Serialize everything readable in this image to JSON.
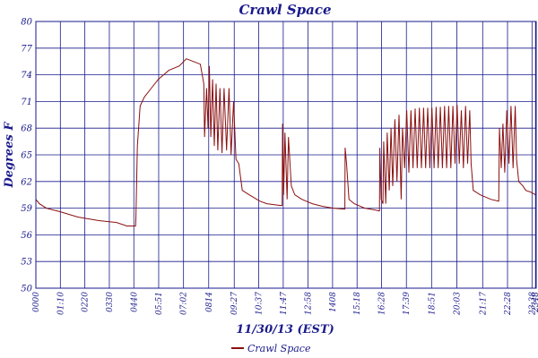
{
  "chart_data": {
    "type": "line",
    "title": "Crawl Space",
    "xlabel": "11/30/13 (EST)",
    "ylabel": "Degrees F",
    "ylim": [
      50,
      80
    ],
    "yticks": [
      50,
      53,
      56,
      59,
      62,
      65,
      68,
      71,
      74,
      77,
      80
    ],
    "ytick_labels": [
      "50",
      "53",
      "56",
      "59",
      "62",
      "65",
      "68",
      "71",
      "74",
      "77",
      "80"
    ],
    "xtick_labels": [
      "0000",
      "01:10",
      "0220",
      "0330",
      "0440",
      "05:51",
      "07:02",
      "0814",
      "09:27",
      "10:37",
      "11:47",
      "12:58",
      "1408",
      "15:18",
      "16:28",
      "17:39",
      "18:51",
      "20:03",
      "21:17",
      "22:28",
      "23:38",
      "2348"
    ],
    "xtick_minutes": [
      0,
      70,
      140,
      210,
      280,
      351,
      422,
      494,
      567,
      637,
      707,
      778,
      848,
      918,
      988,
      1059,
      1131,
      1203,
      1277,
      1348,
      1418,
      1428
    ],
    "xlim": [
      0,
      1430
    ],
    "grid": true,
    "legend_position": "bottom-center",
    "series": [
      {
        "name": "Crawl Space",
        "color": "#8b1010",
        "points": [
          [
            0,
            60.0
          ],
          [
            10,
            59.5
          ],
          [
            30,
            59.0
          ],
          [
            70,
            58.6
          ],
          [
            120,
            58.0
          ],
          [
            180,
            57.6
          ],
          [
            230,
            57.4
          ],
          [
            260,
            57.0
          ],
          [
            285,
            57.0
          ],
          [
            286,
            58.0
          ],
          [
            290,
            66.0
          ],
          [
            298,
            70.5
          ],
          [
            310,
            71.5
          ],
          [
            330,
            72.5
          ],
          [
            350,
            73.5
          ],
          [
            380,
            74.5
          ],
          [
            410,
            75.0
          ],
          [
            430,
            75.8
          ],
          [
            450,
            75.5
          ],
          [
            470,
            75.2
          ],
          [
            480,
            73.0
          ],
          [
            482,
            67.0
          ],
          [
            488,
            72.5
          ],
          [
            492,
            68.0
          ],
          [
            496,
            75.0
          ],
          [
            500,
            67.0
          ],
          [
            505,
            73.5
          ],
          [
            510,
            66.0
          ],
          [
            515,
            73.0
          ],
          [
            520,
            65.5
          ],
          [
            526,
            72.5
          ],
          [
            532,
            65.2
          ],
          [
            538,
            72.5
          ],
          [
            545,
            65.5
          ],
          [
            552,
            72.5
          ],
          [
            558,
            65.0
          ],
          [
            565,
            71.0
          ],
          [
            572,
            64.5
          ],
          [
            580,
            64.0
          ],
          [
            590,
            61.0
          ],
          [
            610,
            60.5
          ],
          [
            640,
            59.8
          ],
          [
            660,
            59.5
          ],
          [
            700,
            59.3
          ],
          [
            704,
            59.3
          ],
          [
            705,
            68.5
          ],
          [
            708,
            60.5
          ],
          [
            712,
            67.5
          ],
          [
            718,
            60.0
          ],
          [
            722,
            67.0
          ],
          [
            730,
            61.5
          ],
          [
            740,
            60.5
          ],
          [
            760,
            60.0
          ],
          [
            790,
            59.5
          ],
          [
            820,
            59.2
          ],
          [
            850,
            59.0
          ],
          [
            880,
            58.9
          ],
          [
            883,
            58.9
          ],
          [
            884,
            65.8
          ],
          [
            888,
            64.0
          ],
          [
            895,
            60.0
          ],
          [
            910,
            59.5
          ],
          [
            940,
            59.0
          ],
          [
            970,
            58.8
          ],
          [
            980,
            58.7
          ],
          [
            982,
            58.7
          ],
          [
            983,
            65.8
          ],
          [
            987,
            60.0
          ],
          [
            992,
            59.5
          ],
          [
            994,
            66.5
          ],
          [
            1000,
            59.5
          ],
          [
            1004,
            67.5
          ],
          [
            1010,
            61.0
          ],
          [
            1015,
            68.0
          ],
          [
            1020,
            61.5
          ],
          [
            1026,
            69.0
          ],
          [
            1032,
            62.0
          ],
          [
            1038,
            69.5
          ],
          [
            1044,
            60.0
          ],
          [
            1048,
            68.0
          ],
          [
            1054,
            63.5
          ],
          [
            1060,
            70.0
          ],
          [
            1066,
            63.0
          ],
          [
            1072,
            70.0
          ],
          [
            1078,
            63.5
          ],
          [
            1084,
            70.2
          ],
          [
            1090,
            63.5
          ],
          [
            1096,
            70.3
          ],
          [
            1102,
            63.5
          ],
          [
            1108,
            70.3
          ],
          [
            1114,
            63.5
          ],
          [
            1120,
            70.3
          ],
          [
            1126,
            63.5
          ],
          [
            1132,
            70.3
          ],
          [
            1138,
            63.5
          ],
          [
            1144,
            70.4
          ],
          [
            1150,
            63.5
          ],
          [
            1156,
            70.4
          ],
          [
            1162,
            63.5
          ],
          [
            1168,
            70.5
          ],
          [
            1174,
            63.5
          ],
          [
            1180,
            70.5
          ],
          [
            1186,
            63.5
          ],
          [
            1192,
            70.5
          ],
          [
            1198,
            64.0
          ],
          [
            1204,
            70.6
          ],
          [
            1210,
            64.0
          ],
          [
            1216,
            70.0
          ],
          [
            1222,
            63.5
          ],
          [
            1228,
            70.5
          ],
          [
            1234,
            64.0
          ],
          [
            1240,
            70.0
          ],
          [
            1244,
            64.0
          ],
          [
            1250,
            61.0
          ],
          [
            1270,
            60.5
          ],
          [
            1300,
            60.0
          ],
          [
            1322,
            59.8
          ],
          [
            1323,
            59.8
          ],
          [
            1325,
            68.0
          ],
          [
            1330,
            63.5
          ],
          [
            1335,
            68.5
          ],
          [
            1340,
            63.0
          ],
          [
            1346,
            70.0
          ],
          [
            1352,
            64.0
          ],
          [
            1358,
            70.5
          ],
          [
            1364,
            63.5
          ],
          [
            1370,
            70.5
          ],
          [
            1374,
            64.5
          ],
          [
            1380,
            62.0
          ],
          [
            1392,
            61.5
          ],
          [
            1400,
            61.0
          ],
          [
            1415,
            60.8
          ],
          [
            1428,
            60.5
          ]
        ]
      }
    ]
  }
}
